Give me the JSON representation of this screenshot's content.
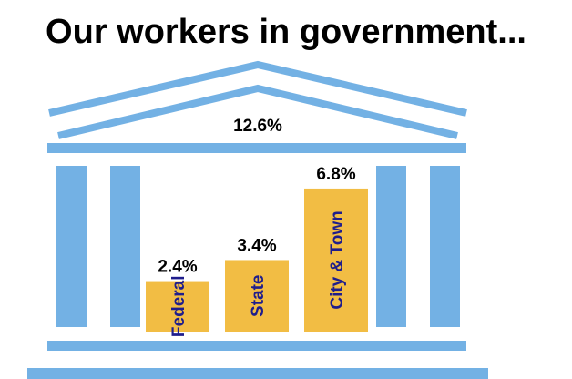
{
  "title": "Our workers in government...",
  "colors": {
    "building": "#73b1e4",
    "bar": "#f2bd44",
    "bar_label": "#1f1d8c",
    "value_label": "#000000"
  },
  "building_icon": "government-building-icon",
  "total_label": "12.6%",
  "chart_data": {
    "type": "bar",
    "title": "Our workers in government...",
    "categories": [
      "Federal",
      "State",
      "City & Town"
    ],
    "values": [
      2.4,
      3.4,
      6.8
    ],
    "value_labels": [
      "2.4%",
      "3.4%",
      "6.8%"
    ],
    "total": 12.6,
    "total_label": "12.6%",
    "unit": "%",
    "grid": false,
    "legend": "none"
  }
}
